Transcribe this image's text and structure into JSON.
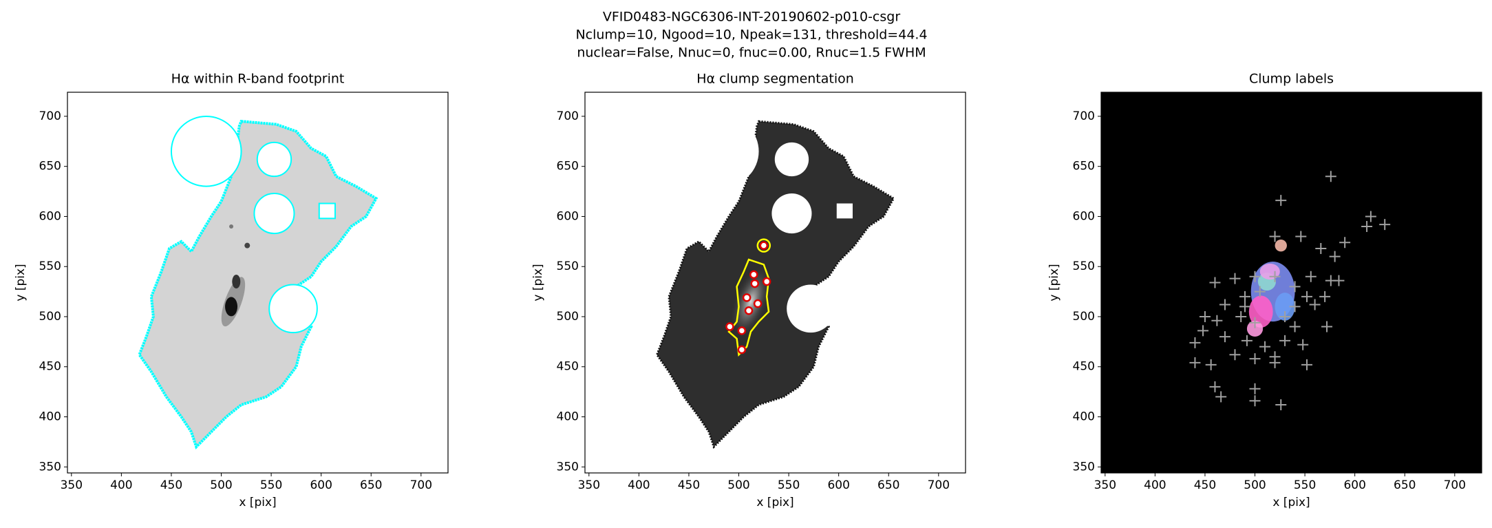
{
  "figure": {
    "title_lines": [
      "VFID0483-NGC6306-INT-20190602-p010-csgr",
      "Nclump=10, Ngood=10, Npeak=131, threshold=44.4",
      "nuclear=False, Nnuc=0, fnuc=0.00, Rnuc=1.5 FWHM"
    ]
  },
  "chart_data": [
    {
      "type": "image",
      "title": "Hα within R-band footprint",
      "xlabel": "x [pix]",
      "ylabel": "y [pix]",
      "xlim": [
        346,
        727
      ],
      "ylim": [
        344,
        724
      ],
      "xticks": [
        350,
        400,
        450,
        500,
        550,
        600,
        650,
        700
      ],
      "yticks": [
        350,
        400,
        450,
        500,
        550,
        600,
        650,
        700
      ],
      "color": "#00ffff"
    },
    {
      "type": "image",
      "title": "Hα clump segmentation",
      "xlabel": "x [pix]",
      "ylabel": "y [pix]",
      "xlim": [
        346,
        727
      ],
      "ylim": [
        344,
        724
      ],
      "xticks": [
        350,
        400,
        450,
        500,
        550,
        600,
        650,
        700
      ],
      "yticks": [
        350,
        400,
        450,
        500,
        550,
        600,
        650,
        700
      ],
      "color": "#ffff00",
      "series": [
        {
          "color": "#e00000",
          "marker": "circle",
          "x": [
            525,
            515,
            528,
            516,
            508,
            519,
            510,
            491,
            503,
            503
          ],
          "y": [
            571,
            542,
            535,
            533,
            519,
            513,
            506,
            490,
            486,
            467
          ]
        }
      ]
    },
    {
      "type": "image",
      "title": "Clump labels",
      "xlabel": "x [pix]",
      "ylabel": "y [pix]",
      "xlim": [
        346,
        727
      ],
      "ylim": [
        344,
        724
      ],
      "xticks": [
        350,
        400,
        450,
        500,
        550,
        600,
        650,
        700
      ],
      "yticks": [
        350,
        400,
        450,
        500,
        550,
        600,
        650,
        700
      ],
      "color": "#000000",
      "series": [
        {
          "color": "#a0a0a0",
          "marker": "plus",
          "x": [
            576,
            526,
            616,
            630,
            612,
            520,
            546,
            590,
            566,
            580,
            460,
            480,
            500,
            520,
            540,
            556,
            576,
            584,
            490,
            470,
            450,
            462,
            486,
            500,
            540,
            552,
            560,
            570,
            572,
            448,
            470,
            492,
            510,
            530,
            548,
            440,
            480,
            500,
            520,
            456,
            440,
            520,
            552,
            500,
            460,
            466,
            500,
            526,
            490,
            505,
            530,
            540
          ],
          "y": [
            640,
            616,
            600,
            592,
            590,
            580,
            580,
            574,
            568,
            560,
            534,
            538,
            540,
            540,
            530,
            540,
            536,
            536,
            520,
            512,
            500,
            496,
            500,
            494,
            510,
            520,
            512,
            520,
            490,
            486,
            480,
            476,
            470,
            476,
            472,
            474,
            462,
            458,
            460,
            452,
            454,
            454,
            452,
            428,
            430,
            420,
            416,
            412,
            510,
            525,
            500,
            490
          ]
        }
      ]
    }
  ]
}
